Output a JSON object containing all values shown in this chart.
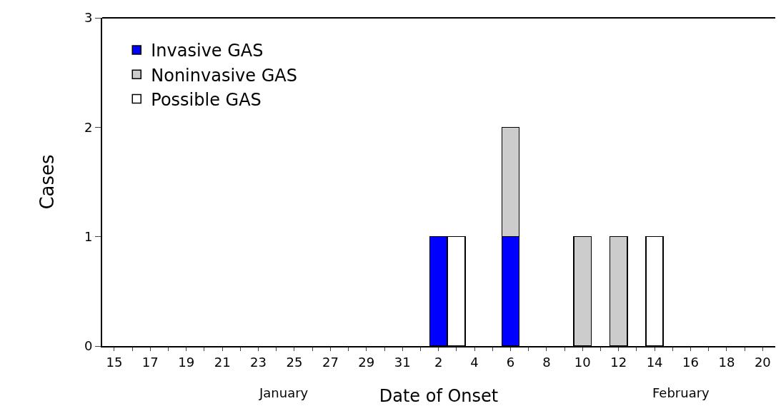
{
  "chart_data": {
    "type": "bar",
    "stacked": true,
    "xlabel": "Date of Onset",
    "ylabel": "Cases",
    "categories": [
      "15",
      null,
      "17",
      null,
      "19",
      null,
      "21",
      null,
      "23",
      null,
      "25",
      null,
      "27",
      null,
      "29",
      null,
      "31",
      null,
      "2",
      null,
      "4",
      null,
      "6",
      null,
      "8",
      null,
      "10",
      null,
      "12",
      null,
      "14",
      null,
      "16",
      null,
      "18",
      null,
      "20"
    ],
    "series": [
      {
        "name": "Invasive GAS",
        "color": "#0000ff",
        "values": [
          0,
          0,
          0,
          0,
          0,
          0,
          0,
          0,
          0,
          0,
          0,
          0,
          0,
          0,
          0,
          0,
          0,
          0,
          1,
          0,
          0,
          0,
          1,
          0,
          0,
          0,
          0,
          0,
          0,
          0,
          0,
          0,
          0,
          0,
          0,
          0,
          0
        ]
      },
      {
        "name": "Noninvasive GAS",
        "color": "#cccccc",
        "values": [
          0,
          0,
          0,
          0,
          0,
          0,
          0,
          0,
          0,
          0,
          0,
          0,
          0,
          0,
          0,
          0,
          0,
          0,
          0,
          0,
          0,
          0,
          1,
          0,
          0,
          0,
          1,
          0,
          1,
          0,
          0,
          0,
          0,
          0,
          0,
          0,
          0
        ]
      },
      {
        "name": "Possible GAS",
        "color": "#ffffff",
        "values": [
          0,
          0,
          0,
          0,
          0,
          0,
          0,
          0,
          0,
          0,
          0,
          0,
          0,
          0,
          0,
          0,
          0,
          0,
          0,
          1,
          0,
          0,
          0,
          0,
          0,
          0,
          0,
          0,
          0,
          0,
          1,
          0,
          0,
          0,
          0,
          0,
          0
        ]
      }
    ],
    "ylim": [
      0,
      3
    ],
    "yticks": [
      0,
      1,
      2,
      3
    ],
    "legend": "top left",
    "annotations": [
      "January",
      "February"
    ]
  }
}
